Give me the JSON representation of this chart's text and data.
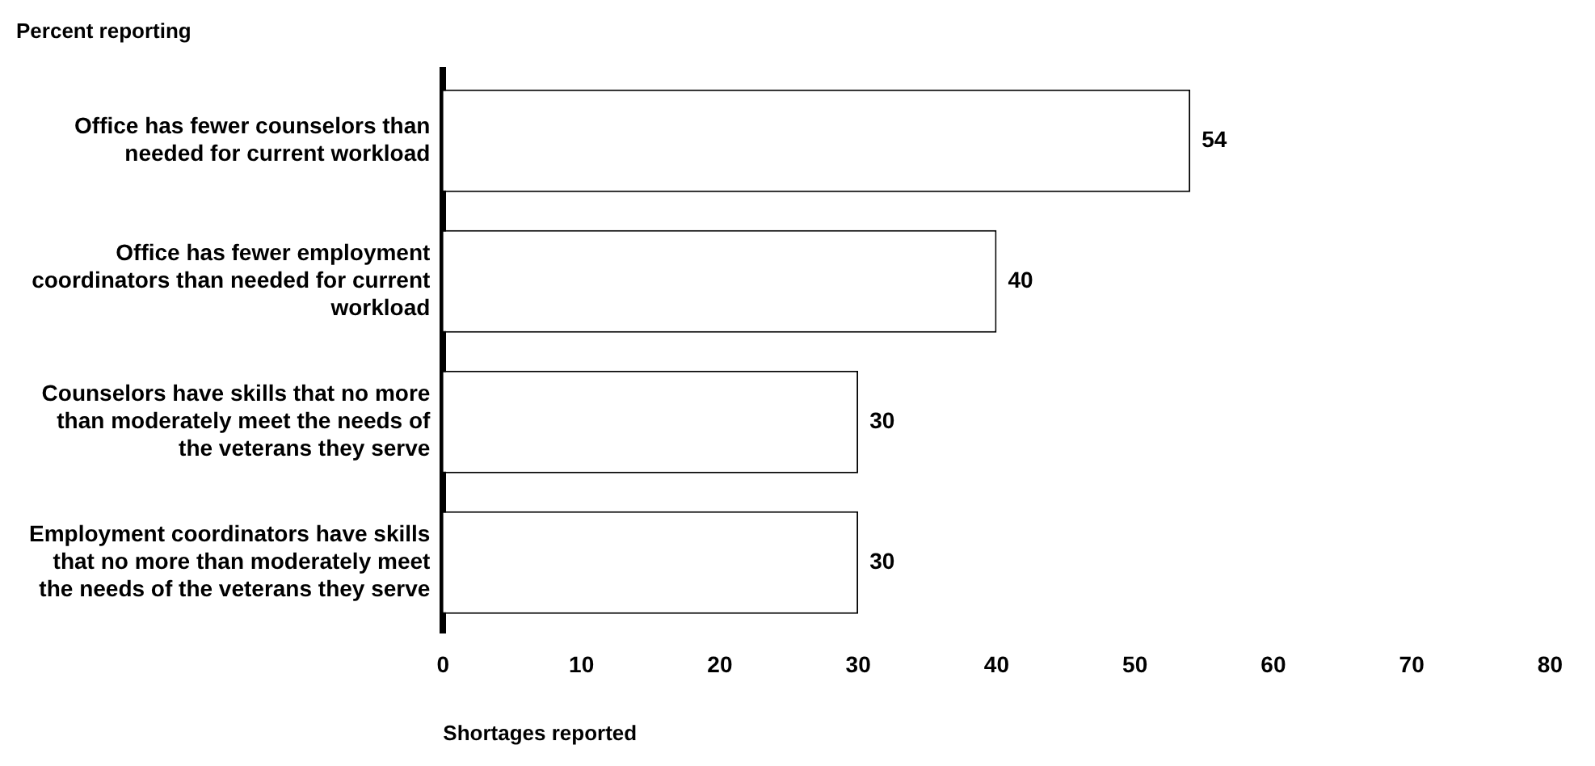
{
  "chart_data": {
    "type": "bar",
    "orientation": "horizontal",
    "title": "Percent reporting",
    "xlabel": "Shortages reported",
    "categories": [
      "Office has fewer counselors than needed for current workload",
      "Office has fewer employment coordinators than needed for current workload",
      "Counselors have skills that no more than moderately meet the needs of the veterans they serve",
      "Employment coordinators have skills that no more than moderately meet the needs of the veterans they serve"
    ],
    "values": [
      54,
      40,
      30,
      30
    ],
    "color": "#ffffff",
    "xlim": [
      0,
      80
    ],
    "xticks": [
      0,
      10,
      20,
      30,
      40,
      50,
      60,
      70,
      80
    ],
    "grid": false,
    "legend": false,
    "data_labels": true
  }
}
